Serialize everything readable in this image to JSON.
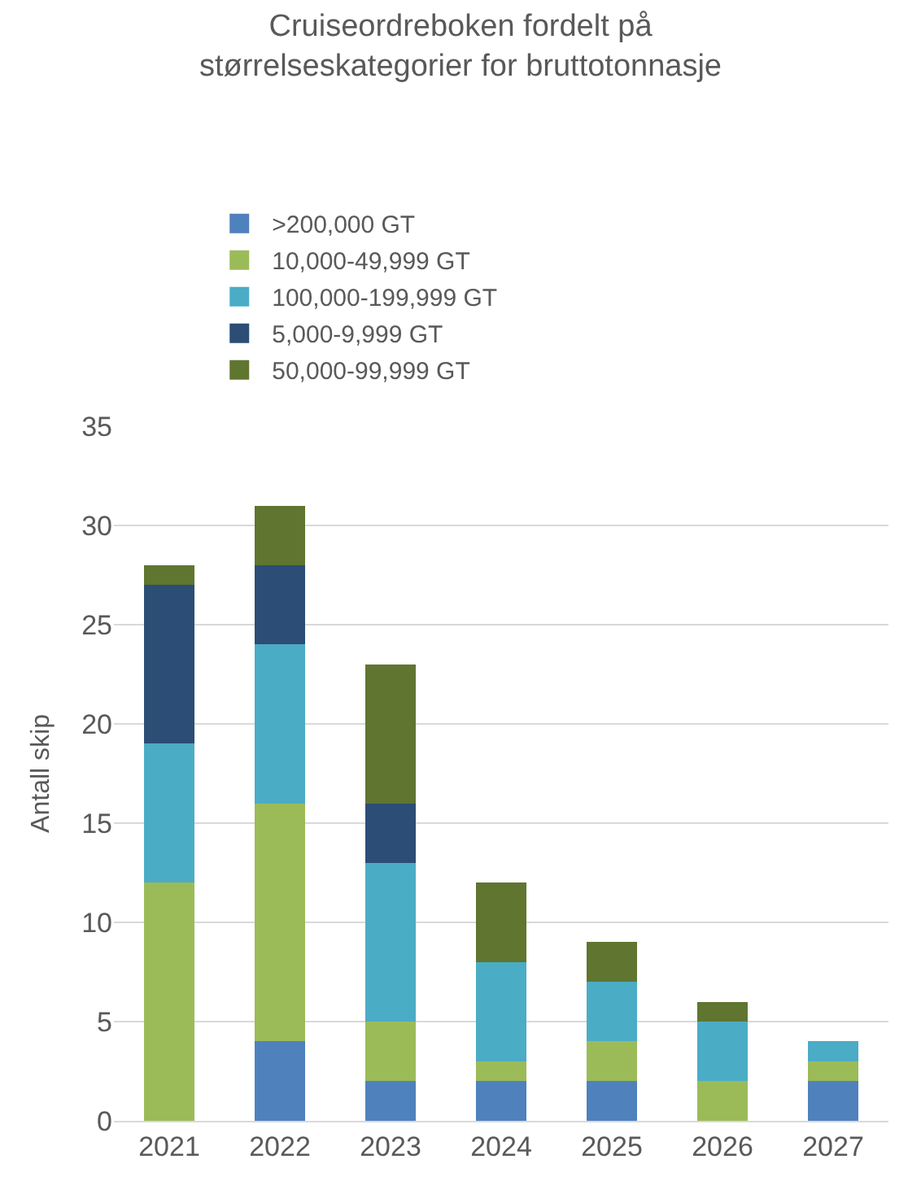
{
  "chart_data": {
    "type": "bar",
    "stacked": true,
    "title": "Cruiseordreboken fordelt på\nstørrelseskategorier for bruttotonnasje",
    "ylabel": "Antall skip",
    "categories": [
      "2021",
      "2022",
      "2023",
      "2024",
      "2025",
      "2026",
      "2027"
    ],
    "series": [
      {
        "name": ">200,000 GT",
        "color": "#4f81bd",
        "values": [
          0,
          4,
          2,
          2,
          2,
          0,
          2
        ]
      },
      {
        "name": "10,000-49,999 GT",
        "color": "#9bbb59",
        "values": [
          12,
          12,
          3,
          1,
          2,
          2,
          1
        ]
      },
      {
        "name": "100,000-199,999 GT",
        "color": "#4bacc6",
        "values": [
          7,
          8,
          8,
          5,
          3,
          3,
          1
        ]
      },
      {
        "name": "5,000-9,999 GT",
        "color": "#2c4d75",
        "values": [
          8,
          4,
          3,
          0,
          0,
          0,
          0
        ]
      },
      {
        "name": "50,000-99,999 GT",
        "color": "#5f7530",
        "values": [
          1,
          3,
          7,
          4,
          2,
          1,
          0
        ]
      }
    ],
    "ylim": [
      0,
      35
    ],
    "yticks": [
      0,
      5,
      10,
      15,
      20,
      25,
      30,
      35
    ],
    "grid": "y",
    "legend": "top"
  }
}
